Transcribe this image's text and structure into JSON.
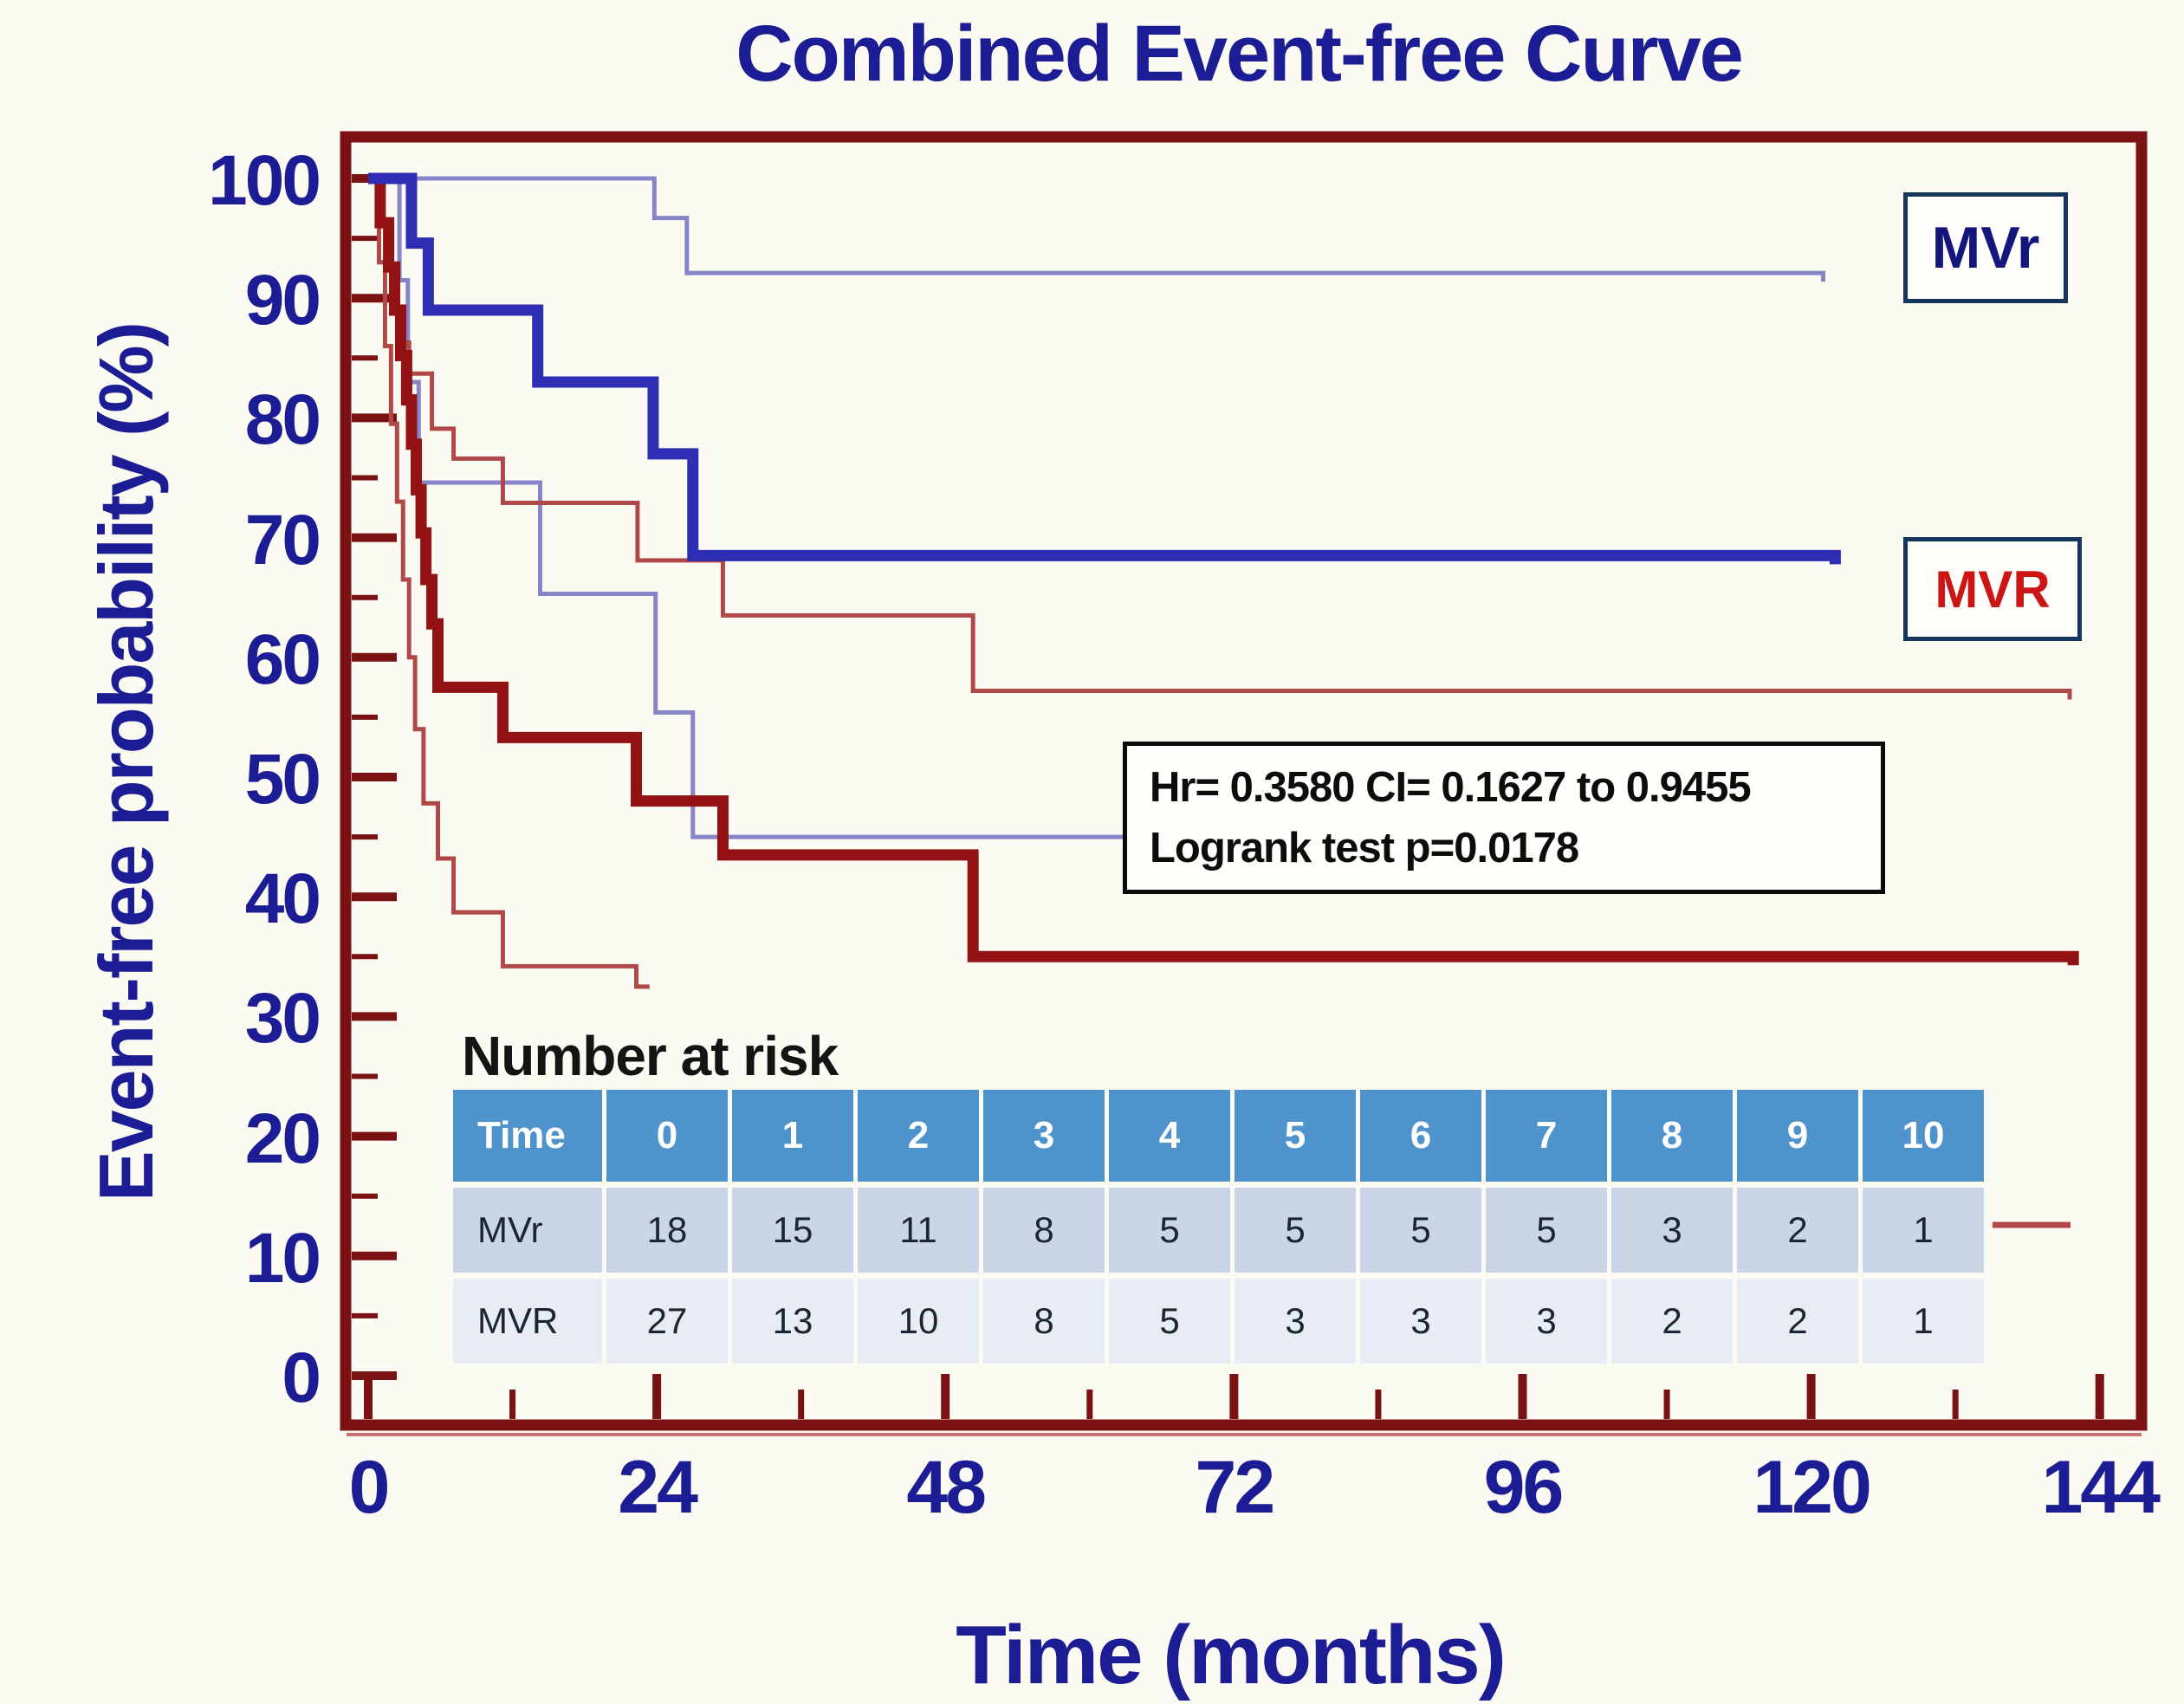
{
  "chart_data": {
    "type": "line",
    "subtype": "kaplan-meier-step",
    "title": "Combined Event-free Curve",
    "xlabel": "Time (months)",
    "ylabel": "Event-free probability (%)",
    "xlim": [
      0,
      144
    ],
    "ylim": [
      0,
      100
    ],
    "grid": false,
    "x_ticks_major": [
      0,
      24,
      48,
      72,
      96,
      120,
      144
    ],
    "x_ticks_minor": [
      12,
      36,
      60,
      84,
      108,
      132
    ],
    "y_ticks_major": [
      100,
      90,
      80,
      70,
      60,
      50,
      40,
      30,
      20,
      10,
      0
    ],
    "y_ticks_minor": [
      5,
      15,
      25,
      35,
      45,
      55,
      65,
      75,
      85,
      95
    ],
    "series": [
      {
        "id": "mvr-upper-ci",
        "name": "MVr upper 95% CI",
        "color": "#8585c7",
        "width": 5,
        "end_tick": true,
        "points": [
          [
            0,
            100
          ],
          [
            23.8,
            96.7
          ],
          [
            26.5,
            92.1
          ],
          [
            121,
            92.1
          ]
        ]
      },
      {
        "id": "mvr-lower-ci",
        "name": "MVr lower 95% CI",
        "color": "#8585c7",
        "width": 5,
        "end_tick": false,
        "points": [
          [
            0,
            100
          ],
          [
            2.6,
            91.5
          ],
          [
            3.3,
            83
          ],
          [
            4.2,
            74.6
          ],
          [
            14.3,
            65.3
          ],
          [
            23.9,
            55.4
          ],
          [
            27,
            45
          ],
          [
            64,
            45
          ]
        ]
      },
      {
        "id": "mvR-upper-ci",
        "name": "MVR upper 95% CI",
        "color": "#b04848",
        "width": 5,
        "end_tick": true,
        "points": [
          [
            0,
            100
          ],
          [
            1.0,
            96.3
          ],
          [
            1.7,
            92.6
          ],
          [
            2.3,
            89.3
          ],
          [
            2.9,
            86.3
          ],
          [
            3.4,
            83.7
          ],
          [
            5.3,
            79.1
          ],
          [
            7.1,
            76.6
          ],
          [
            11.2,
            72.9
          ],
          [
            22.4,
            68.1
          ],
          [
            29.5,
            63.5
          ],
          [
            50.3,
            57.2
          ],
          [
            141.5,
            57.2
          ]
        ]
      },
      {
        "id": "mvR-lower-ci",
        "name": "MVR lower 95% CI",
        "color": "#b04848",
        "width": 5,
        "end_tick": false,
        "points": [
          [
            0,
            100
          ],
          [
            0.9,
            93
          ],
          [
            1.4,
            86
          ],
          [
            1.9,
            79.5
          ],
          [
            2.4,
            73
          ],
          [
            2.9,
            66.5
          ],
          [
            3.4,
            60
          ],
          [
            3.9,
            54
          ],
          [
            4.6,
            47.8
          ],
          [
            5.8,
            43.2
          ],
          [
            7.1,
            38.7
          ],
          [
            11.2,
            34.2
          ],
          [
            22.3,
            32.5
          ],
          [
            23.4,
            32.5
          ]
        ]
      },
      {
        "id": "mvR-curve",
        "name": "MVR",
        "color": "#931315",
        "width": 13,
        "end_tick": true,
        "points": [
          [
            0,
            100
          ],
          [
            1.0,
            96.3
          ],
          [
            1.7,
            92.6
          ],
          [
            2.2,
            89
          ],
          [
            2.7,
            85.2
          ],
          [
            3.2,
            81.5
          ],
          [
            3.6,
            77.8
          ],
          [
            4.0,
            74
          ],
          [
            4.4,
            70.4
          ],
          [
            4.8,
            66.5
          ],
          [
            5.3,
            62.8
          ],
          [
            5.8,
            57.5
          ],
          [
            11.2,
            53.3
          ],
          [
            22.3,
            48
          ],
          [
            29.5,
            43.5
          ],
          [
            50.3,
            35
          ],
          [
            141.8,
            35
          ]
        ]
      },
      {
        "id": "mvr-curve",
        "name": "MVr",
        "color": "#2e2eb5",
        "width": 13,
        "end_tick": true,
        "points": [
          [
            0,
            100
          ],
          [
            3.6,
            94.6
          ],
          [
            5.0,
            89
          ],
          [
            14.1,
            83
          ],
          [
            23.7,
            77
          ],
          [
            27,
            68.5
          ],
          [
            122,
            68.5
          ]
        ]
      }
    ],
    "stray_dash": {
      "x1": 2300,
      "x2": 2390,
      "y": 1414,
      "color": "#b04848"
    }
  },
  "legend": [
    {
      "label": "MVr",
      "color": "#15157e"
    },
    {
      "label": "MVR",
      "color": "#cc1515"
    }
  ],
  "annotation": {
    "line1": "Hr= 0.3580  CI= 0.1627 to 0.9455",
    "line2": "Logrank test p=0.0178"
  },
  "risk_table": {
    "heading": "Number at risk",
    "columns": [
      "Time",
      "0",
      "1",
      "2",
      "3",
      "4",
      "5",
      "6",
      "7",
      "8",
      "9",
      "10"
    ],
    "rows": [
      {
        "label": "MVr",
        "values": [
          18,
          15,
          11,
          8,
          5,
          5,
          5,
          5,
          3,
          2,
          1
        ]
      },
      {
        "label": "MVR",
        "values": [
          27,
          13,
          10,
          8,
          5,
          3,
          3,
          3,
          2,
          2,
          1
        ]
      }
    ]
  },
  "colors": {
    "navy_text": "#1c1c94",
    "frame_maroon": "#7a1113",
    "mvr_curve_blue": "#2e2eb5",
    "mvr_ci_blue": "#8585c7",
    "mvR_curve_red": "#931315",
    "mvR_ci_red": "#b04848",
    "table_header_bg": "#4e93cb",
    "table_row1_bg": "#cbd5e8",
    "table_row2_bg": "#e8ecf4",
    "background": "#fbfaf3"
  }
}
